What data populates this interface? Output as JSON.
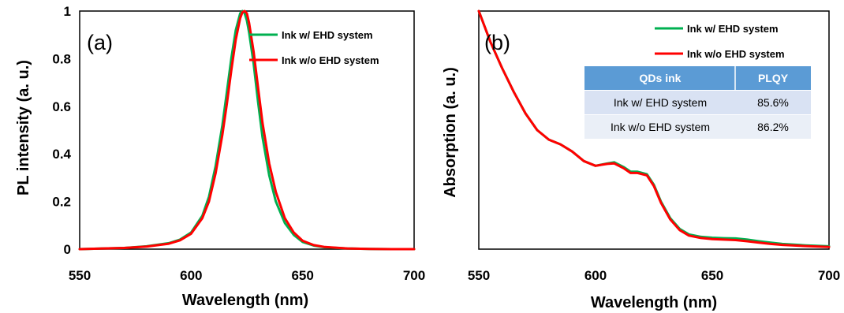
{
  "chart_data": [
    {
      "type": "line",
      "panel_label": "(a)",
      "xlabel": "Wavelength (nm)",
      "ylabel": "PL intensity (a. u.)",
      "xlim": [
        550,
        700
      ],
      "ylim": [
        0,
        1
      ],
      "x_ticks": [
        "550",
        "600",
        "650",
        "700"
      ],
      "y_ticks": [
        "0",
        "0.2",
        "0.4",
        "0.6",
        "0.8",
        "1"
      ],
      "grid": false,
      "legend_position": "top-right",
      "series": [
        {
          "name": "Ink w/ EHD system",
          "color": "#00b050",
          "x": [
            550,
            570,
            580,
            590,
            595,
            600,
            605,
            608,
            611,
            614,
            616,
            618,
            620,
            622,
            623,
            624,
            625,
            626,
            628,
            630,
            632,
            635,
            638,
            642,
            646,
            650,
            655,
            660,
            670,
            680,
            690,
            700
          ],
          "y": [
            0.0,
            0.005,
            0.012,
            0.025,
            0.04,
            0.07,
            0.14,
            0.22,
            0.35,
            0.52,
            0.66,
            0.8,
            0.92,
            0.99,
            1.0,
            0.99,
            0.96,
            0.91,
            0.78,
            0.62,
            0.47,
            0.31,
            0.2,
            0.11,
            0.06,
            0.03,
            0.015,
            0.008,
            0.003,
            0.001,
            0.0,
            0.0
          ]
        },
        {
          "name": "Ink w/o EHD system",
          "color": "#ff0000",
          "x": [
            550,
            570,
            580,
            590,
            595,
            600,
            605,
            608,
            611,
            614,
            616,
            618,
            620,
            622,
            623,
            624,
            625,
            626,
            628,
            630,
            632,
            635,
            638,
            642,
            646,
            650,
            655,
            660,
            670,
            680,
            690,
            700
          ],
          "y": [
            0.0,
            0.005,
            0.011,
            0.023,
            0.037,
            0.065,
            0.13,
            0.2,
            0.32,
            0.48,
            0.61,
            0.75,
            0.88,
            0.97,
            0.995,
            1.0,
            0.99,
            0.95,
            0.83,
            0.68,
            0.53,
            0.36,
            0.24,
            0.13,
            0.07,
            0.035,
            0.017,
            0.009,
            0.003,
            0.001,
            0.0,
            0.0
          ]
        }
      ]
    },
    {
      "type": "line",
      "panel_label": "(b)",
      "xlabel": "Wavelength (nm)",
      "ylabel": "Absorption (a. u.)",
      "xlim": [
        550,
        700
      ],
      "ylim": [
        0,
        1
      ],
      "x_ticks": [
        "550",
        "600",
        "650",
        "700"
      ],
      "y_ticks": [],
      "grid": false,
      "legend_position": "top-right",
      "series": [
        {
          "name": "Ink w/ EHD system",
          "color": "#00b050",
          "x": [
            550,
            555,
            560,
            565,
            570,
            575,
            580,
            585,
            590,
            595,
            600,
            605,
            608,
            612,
            615,
            618,
            622,
            625,
            628,
            632,
            636,
            640,
            645,
            650,
            655,
            660,
            665,
            670,
            675,
            680,
            690,
            700
          ],
          "y": [
            1.0,
            0.87,
            0.76,
            0.66,
            0.57,
            0.5,
            0.46,
            0.44,
            0.41,
            0.37,
            0.35,
            0.36,
            0.365,
            0.345,
            0.325,
            0.325,
            0.315,
            0.27,
            0.2,
            0.13,
            0.085,
            0.062,
            0.052,
            0.048,
            0.046,
            0.045,
            0.04,
            0.033,
            0.027,
            0.022,
            0.016,
            0.012
          ]
        },
        {
          "name": "Ink w/o EHD system",
          "color": "#ff0000",
          "x": [
            550,
            555,
            560,
            565,
            570,
            575,
            580,
            585,
            590,
            595,
            600,
            605,
            608,
            612,
            615,
            618,
            622,
            625,
            628,
            632,
            636,
            640,
            645,
            650,
            655,
            660,
            665,
            670,
            675,
            680,
            690,
            700
          ],
          "y": [
            1.0,
            0.87,
            0.76,
            0.66,
            0.57,
            0.5,
            0.46,
            0.44,
            0.41,
            0.37,
            0.35,
            0.358,
            0.36,
            0.34,
            0.32,
            0.32,
            0.31,
            0.265,
            0.195,
            0.125,
            0.08,
            0.057,
            0.047,
            0.042,
            0.04,
            0.038,
            0.033,
            0.027,
            0.022,
            0.018,
            0.013,
            0.009
          ]
        }
      ],
      "table": {
        "headers": [
          "QDs ink",
          "PLQY"
        ],
        "rows": [
          [
            "Ink w/ EHD system",
            "85.6%"
          ],
          [
            "Ink w/o EHD system",
            "86.2%"
          ]
        ],
        "header_color": "#5b9bd5",
        "row_colors": [
          "#d9e2f3",
          "#eaeff7"
        ]
      }
    }
  ]
}
